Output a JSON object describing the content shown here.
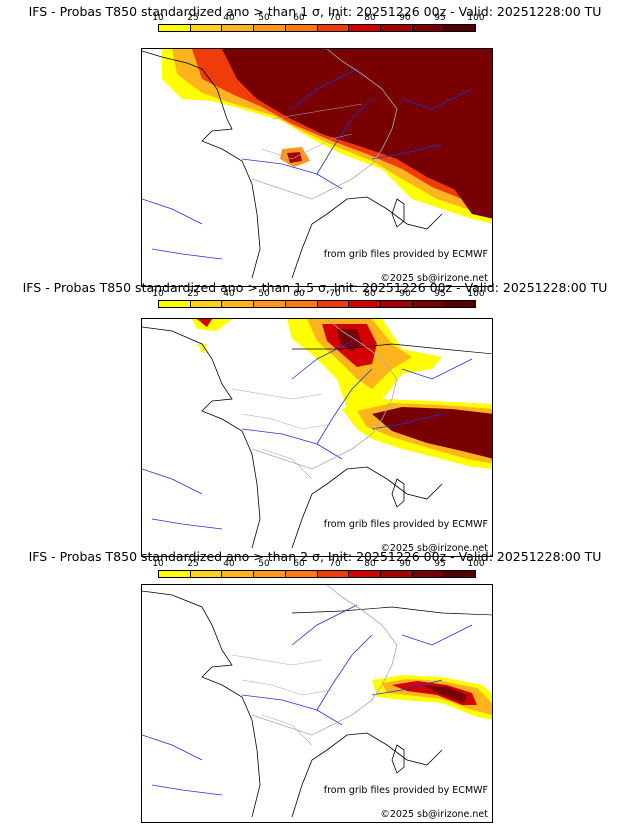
{
  "colors": {
    "scale": [
      "#ffff00",
      "#ffd21e",
      "#ffb41e",
      "#ff961e",
      "#ff7814",
      "#f03c0a",
      "#d20000",
      "#a50000",
      "#780000",
      "#500000"
    ],
    "coast": "#000000",
    "rivers": "#2233dd",
    "borders": "#aaaaaa"
  },
  "legend": {
    "ticks": [
      "10",
      "25",
      "40",
      "50",
      "60",
      "70",
      "80",
      "90",
      "95",
      "100"
    ]
  },
  "panels": [
    {
      "title": "IFS - Probas T850  standardized ano > than 1 σ, Init: 20251226 00z - Valid: 20251228:00 TU",
      "credit_source": "from grib files provided by ECMWF",
      "credit_copyright": "©2025 sb@irizone.net"
    },
    {
      "title": "IFS - Probas T850  standardized ano > than 1.5 σ, Init: 20251226 00z - Valid: 20251228:00 TU",
      "credit_source": "from grib files provided by ECMWF",
      "credit_copyright": "©2025 sb@irizone.net"
    },
    {
      "title": "IFS - Probas T850  standardized ano > than 2 σ, Init: 20251226 00z - Valid: 20251228:00 TU",
      "credit_source": "from grib files provided by ECMWF",
      "credit_copyright": "©2025 sb@irizone.net"
    }
  ]
}
